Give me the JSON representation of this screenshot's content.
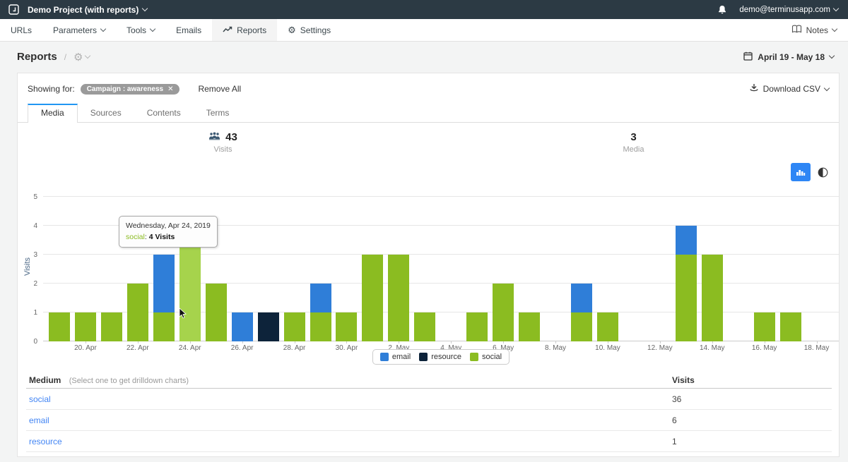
{
  "topbar": {
    "project": "Demo Project (with reports)",
    "user_email": "demo@terminusapp.com"
  },
  "nav": {
    "items": [
      {
        "label": "URLs"
      },
      {
        "label": "Parameters"
      },
      {
        "label": "Tools"
      },
      {
        "label": "Emails"
      },
      {
        "label": "Reports"
      },
      {
        "label": "Settings"
      }
    ],
    "notes_label": "Notes"
  },
  "header": {
    "title": "Reports",
    "date_range": "April 19 - May 18"
  },
  "filters": {
    "showing_for_label": "Showing for:",
    "chip_label": "Campaign : awareness",
    "chip_close": "✕",
    "remove_all_label": "Remove All",
    "download_csv_label": "Download CSV"
  },
  "tabs": [
    "Media",
    "Sources",
    "Contents",
    "Terms"
  ],
  "stats": [
    {
      "value": "43",
      "label": "Visits"
    },
    {
      "value": "3",
      "label": "Media"
    }
  ],
  "tooltip": {
    "date": "Wednesday, Apr 24, 2019",
    "series": "social",
    "separator": ": ",
    "value_text": "4 Visits"
  },
  "chart_data": {
    "type": "bar",
    "stacked": true,
    "ylabel": "Visits",
    "ylim": [
      0,
      5
    ],
    "yticks": [
      0,
      1,
      2,
      3,
      4,
      5
    ],
    "x": [
      "19. Apr",
      "20. Apr",
      "21. Apr",
      "22. Apr",
      "23. Apr",
      "24. Apr",
      "25. Apr",
      "26. Apr",
      "27. Apr",
      "28. Apr",
      "29. Apr",
      "30. Apr",
      "1. May",
      "2. May",
      "3. May",
      "4. May",
      "5. May",
      "6. May",
      "7. May",
      "8. May",
      "9. May",
      "10. May",
      "11. May",
      "12. May",
      "13. May",
      "14. May",
      "15. May",
      "16. May",
      "17. May",
      "18. May"
    ],
    "xtick_labels": [
      "20. Apr",
      "22. Apr",
      "24. Apr",
      "26. Apr",
      "28. Apr",
      "30. Apr",
      "2. May",
      "4. May",
      "6. May",
      "8. May",
      "10. May",
      "12. May",
      "14. May",
      "16. May",
      "18. May"
    ],
    "series": [
      {
        "name": "email",
        "color": "#2f7ed8",
        "values": [
          0,
          0,
          0,
          0,
          2,
          0,
          0,
          1,
          0,
          0,
          1,
          0,
          0,
          0,
          0,
          0,
          0,
          0,
          0,
          0,
          1,
          0,
          0,
          0,
          1,
          0,
          0,
          0,
          0,
          0
        ]
      },
      {
        "name": "resource",
        "color": "#0d233a",
        "values": [
          0,
          0,
          0,
          0,
          0,
          0,
          0,
          0,
          1,
          0,
          0,
          0,
          0,
          0,
          0,
          0,
          0,
          0,
          0,
          0,
          0,
          0,
          0,
          0,
          0,
          0,
          0,
          0,
          0,
          0
        ]
      },
      {
        "name": "social",
        "color": "#8bbc21",
        "values": [
          1,
          1,
          1,
          2,
          1,
          4,
          2,
          0,
          0,
          1,
          1,
          1,
          3,
          3,
          1,
          0,
          1,
          2,
          1,
          0,
          1,
          1,
          0,
          0,
          3,
          3,
          0,
          1,
          1,
          0
        ]
      }
    ],
    "highlight": {
      "day_index": 5,
      "series": "social",
      "color": "#a6d34c"
    },
    "legend": [
      "email",
      "resource",
      "social"
    ],
    "legend_position": "bottom",
    "grid": true
  },
  "table": {
    "header_medium": "Medium",
    "header_hint": "(Select one to get drilldown charts)",
    "header_visits": "Visits",
    "rows": [
      {
        "medium": "social",
        "visits": "36"
      },
      {
        "medium": "email",
        "visits": "6"
      },
      {
        "medium": "resource",
        "visits": "1"
      }
    ]
  },
  "colors": {
    "accent_blue": "#2e86f5",
    "tab_indicator": "#2196f3",
    "topbar_bg": "#2c3a44",
    "link_blue": "#4285f4"
  }
}
